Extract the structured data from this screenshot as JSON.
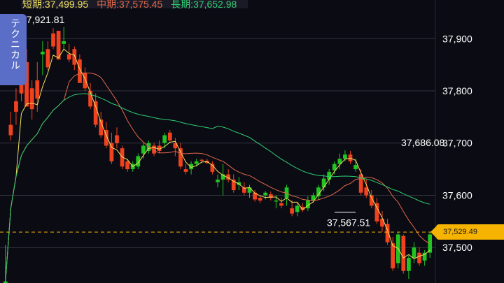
{
  "legend": {
    "short": "短期:37,499.95",
    "mid": "中期:37,575.45",
    "long": "長期:37,652.98"
  },
  "tab_label": "テクニカル",
  "current_price": "37,529.49",
  "colors": {
    "background": "#0b0b14",
    "up": "#22c422",
    "down": "#f0421e",
    "short_ma": "#f0e060",
    "mid_ma": "#e06848",
    "long_ma": "#2ecc71",
    "grid": "#33333f",
    "badge": "#f6b400"
  },
  "chart_data": {
    "type": "candlestick",
    "y_ticks": [
      "37,900",
      "37,800",
      "37,700",
      "37,600",
      "37,500"
    ],
    "y_tick_values": [
      37900,
      37800,
      37700,
      37600,
      37500
    ],
    "ylim": [
      37432,
      37974
    ],
    "annotations": [
      {
        "text": "37,921.81",
        "value": 37921.81,
        "candle": 11
      },
      {
        "text": "37,686.08",
        "value": 37686.08,
        "candle": 80
      },
      {
        "text": "37,567.51",
        "value": 37567.51,
        "candle": 66
      }
    ],
    "current_price": 37529.49,
    "candles": [
      [
        37430,
        37505,
        37410,
        37435
      ],
      [
        37735,
        37760,
        37705,
        37715
      ],
      [
        37780,
        37805,
        37735,
        37760
      ],
      [
        37830,
        37870,
        37780,
        37795
      ],
      [
        37855,
        37880,
        37770,
        37770
      ],
      [
        37805,
        37820,
        37745,
        37765
      ],
      [
        37820,
        37855,
        37760,
        37785
      ],
      [
        37870,
        37895,
        37830,
        37875
      ],
      [
        37880,
        37895,
        37840,
        37845
      ],
      [
        37910,
        37920,
        37880,
        37885
      ],
      [
        37915,
        37915,
        37860,
        37860
      ],
      [
        37890,
        37922,
        37880,
        37895
      ],
      [
        37870,
        37890,
        37855,
        37860
      ],
      [
        37880,
        37885,
        37840,
        37850
      ],
      [
        37860,
        37870,
        37815,
        37815
      ],
      [
        37835,
        37845,
        37800,
        37805
      ],
      [
        37800,
        37815,
        37765,
        37770
      ],
      [
        37780,
        37795,
        37730,
        37735
      ],
      [
        37745,
        37760,
        37710,
        37715
      ],
      [
        37725,
        37740,
        37690,
        37695
      ],
      [
        37700,
        37720,
        37660,
        37665
      ],
      [
        37715,
        37730,
        37690,
        37700
      ],
      [
        37690,
        37695,
        37650,
        37655
      ],
      [
        37665,
        37670,
        37645,
        37650
      ],
      [
        37650,
        37665,
        37645,
        37660
      ],
      [
        37655,
        37680,
        37650,
        37675
      ],
      [
        37680,
        37700,
        37670,
        37695
      ],
      [
        37685,
        37705,
        37680,
        37700
      ],
      [
        37695,
        37700,
        37675,
        37680
      ],
      [
        37695,
        37705,
        37680,
        37685
      ],
      [
        37700,
        37720,
        37690,
        37715
      ],
      [
        37720,
        37725,
        37700,
        37705
      ],
      [
        37700,
        37710,
        37675,
        37690
      ],
      [
        37690,
        37700,
        37650,
        37655
      ],
      [
        37650,
        37660,
        37640,
        37645
      ],
      [
        37650,
        37665,
        37640,
        37660
      ],
      [
        37660,
        37670,
        37655,
        37665
      ],
      [
        37668,
        37670,
        37664,
        37666
      ],
      [
        37666,
        37670,
        37660,
        37662
      ],
      [
        37660,
        37665,
        37640,
        37645
      ],
      [
        37625,
        37640,
        37615,
        37630
      ],
      [
        37630,
        37660,
        37600,
        37640
      ],
      [
        37640,
        37650,
        37625,
        37630
      ],
      [
        37630,
        37640,
        37605,
        37610
      ],
      [
        37620,
        37635,
        37610,
        37625
      ],
      [
        37615,
        37625,
        37600,
        37605
      ],
      [
        37605,
        37620,
        37595,
        37615
      ],
      [
        37605,
        37610,
        37588,
        37592
      ],
      [
        37595,
        37600,
        37585,
        37590
      ],
      [
        37600,
        37608,
        37592,
        37605
      ],
      [
        37602,
        37607,
        37590,
        37595
      ],
      [
        37588,
        37600,
        37575,
        37590
      ],
      [
        37585,
        37595,
        37575,
        37580
      ],
      [
        37595,
        37620,
        37580,
        37615
      ],
      [
        37575,
        37590,
        37560,
        37565
      ],
      [
        37568,
        37585,
        37560,
        37580
      ],
      [
        37578,
        37585,
        37568,
        37572
      ],
      [
        37575,
        37598,
        37570,
        37590
      ],
      [
        37590,
        37605,
        37585,
        37600
      ],
      [
        37598,
        37620,
        37592,
        37615
      ],
      [
        37615,
        37640,
        37608,
        37632
      ],
      [
        37630,
        37650,
        37620,
        37645
      ],
      [
        37648,
        37665,
        37640,
        37660
      ],
      [
        37660,
        37680,
        37650,
        37670
      ],
      [
        37670,
        37686,
        37665,
        37678
      ],
      [
        37678,
        37685,
        37660,
        37665
      ],
      [
        37650,
        37670,
        37645,
        37658
      ],
      [
        37640,
        37650,
        37600,
        37605
      ],
      [
        37615,
        37630,
        37595,
        37600
      ],
      [
        37600,
        37610,
        37575,
        37580
      ],
      [
        37585,
        37595,
        37545,
        37550
      ],
      [
        37555,
        37570,
        37530,
        37540
      ],
      [
        37545,
        37555,
        37505,
        37510
      ],
      [
        37508,
        37520,
        37455,
        37460
      ],
      [
        37470,
        37530,
        37460,
        37525
      ],
      [
        37522,
        37525,
        37450,
        37455
      ],
      [
        37455,
        37485,
        37440,
        37480
      ],
      [
        37480,
        37510,
        37470,
        37500
      ],
      [
        37490,
        37500,
        37465,
        37470
      ],
      [
        37475,
        37495,
        37465,
        37490
      ],
      [
        37490,
        37530,
        37480,
        37525
      ]
    ]
  }
}
